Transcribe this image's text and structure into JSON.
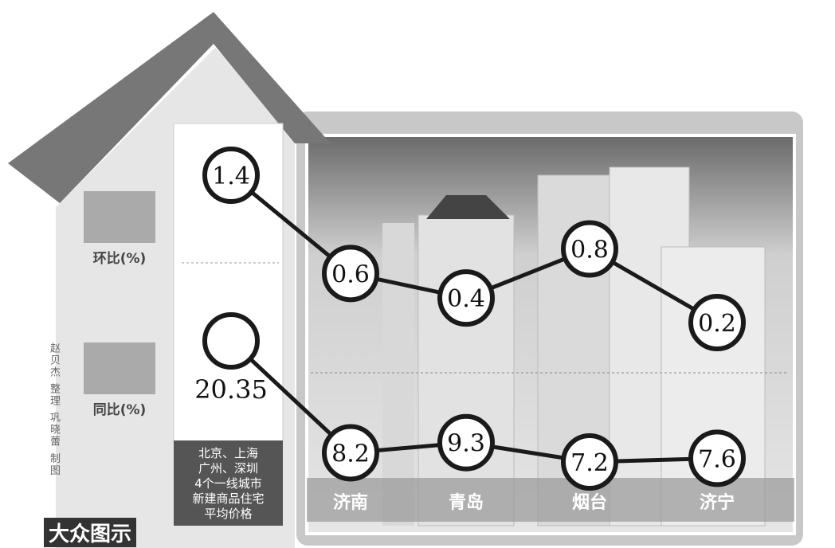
{
  "chart_data": {
    "type": "line",
    "categories": [
      "北京、上海\n广州、深圳\n4个一线城市\n新建商品住宅\n平均价格",
      "济南",
      "青岛",
      "烟台",
      "济宁"
    ],
    "series": [
      {
        "name": "环比(%)",
        "color": "#1a1a1a",
        "values": [
          1.4,
          0.6,
          0.4,
          0.8,
          0.2
        ]
      },
      {
        "name": "同比(%)",
        "color": "#1a1a1a",
        "values": [
          20.35,
          8.2,
          9.3,
          7.2,
          7.6
        ]
      }
    ],
    "credit": "赵贝杰 整理 巩晓蕾 制图",
    "brand": "大众图示"
  }
}
